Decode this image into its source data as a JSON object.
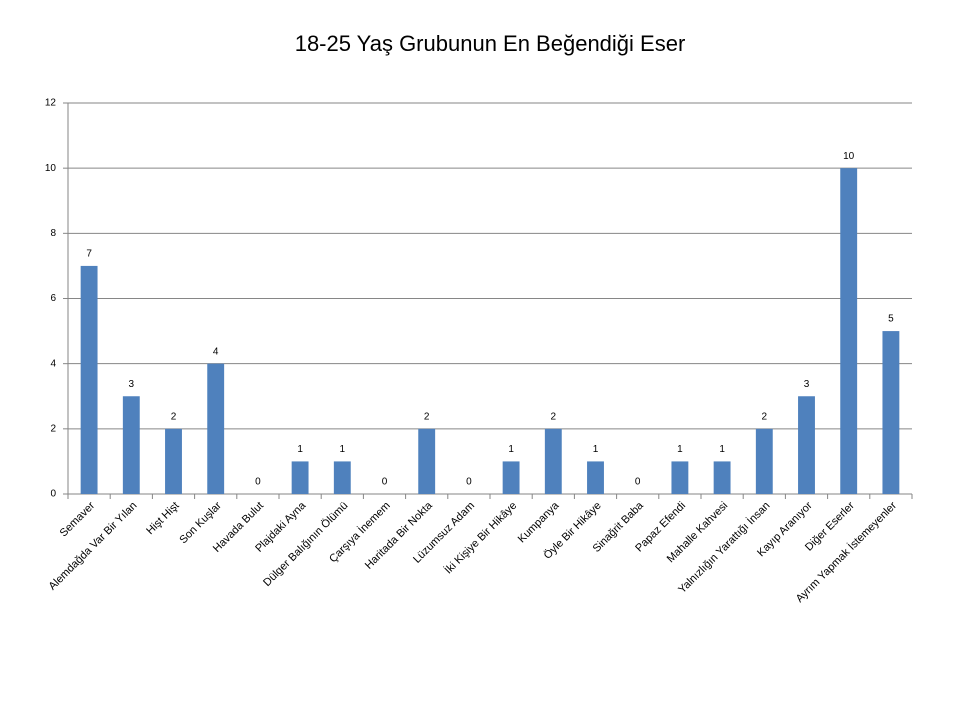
{
  "chart_data": {
    "type": "bar",
    "title": "18-25 Yaş Grubunun En Beğendiği Eser",
    "categories": [
      "Semaver",
      "Alemdağda Var Bir Yılan",
      "Hişt Hişt",
      "Son Kuşlar",
      "Havada Bulut",
      "Plajdaki Ayna",
      "Dülger Balığının Ölümü",
      "Çarşıya İnemem",
      "Haritada Bir Nokta",
      "Lüzumsuz Adam",
      "İki Kişiye Bir Hikâye",
      "Kumpanya",
      "Öyle Bir Hikâye",
      "Sinağrit Baba",
      "Papaz Efendi",
      "Mahalle Kahvesi",
      "Yalnızlığın Yarattığı İnsan",
      "Kayıp Aranıyor",
      "Diğer Eserler",
      "Ayrım Yapmak İstemeyenler"
    ],
    "values": [
      7,
      3,
      2,
      4,
      0,
      1,
      1,
      0,
      2,
      0,
      1,
      2,
      1,
      0,
      1,
      1,
      2,
      3,
      10,
      5
    ],
    "color": "#4f81bd",
    "ylim": [
      0,
      12
    ],
    "yticks": [
      0,
      2,
      4,
      6,
      8,
      10,
      12
    ],
    "grid": true
  }
}
